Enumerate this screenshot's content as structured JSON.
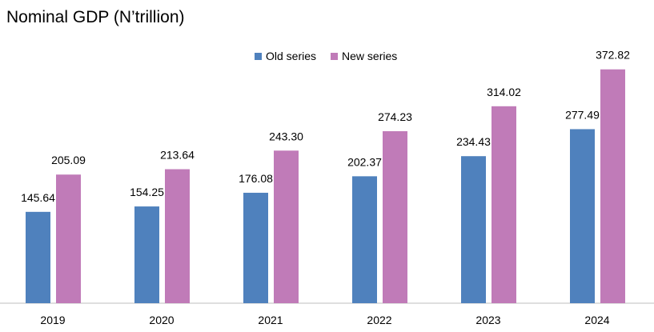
{
  "chart_data": {
    "type": "bar",
    "title": "Nominal GDP (N’trillion)",
    "categories": [
      "2019",
      "2020",
      "2021",
      "2022",
      "2023",
      "2024"
    ],
    "series": [
      {
        "name": "Old series",
        "color": "#4f81bd",
        "values": [
          145.64,
          154.25,
          176.08,
          202.37,
          234.43,
          277.49
        ],
        "labels": [
          "145.64",
          "154.25",
          "176.08",
          "202.37",
          "234.43",
          "277.49"
        ]
      },
      {
        "name": "New series",
        "color": "#c07bb8",
        "values": [
          205.09,
          213.64,
          243.3,
          274.23,
          314.02,
          372.82
        ],
        "labels": [
          "205.09",
          "213.64",
          "243.30",
          "274.23",
          "314.02",
          "372.82"
        ]
      }
    ],
    "ylim": [
      0,
      375
    ],
    "grid": false,
    "legend_position": "top-center",
    "xlabel": "",
    "ylabel": ""
  }
}
